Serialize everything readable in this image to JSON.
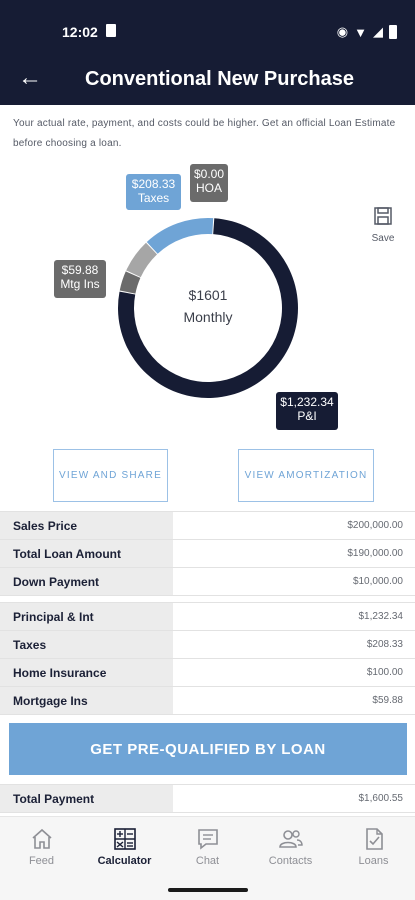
{
  "status": {
    "time": "12:02"
  },
  "header": {
    "title": "Conventional New Purchase",
    "back": "←"
  },
  "disclaimer": "Your actual rate, payment, and costs could be higher. Get an official Loan Estimate before choosing a loan.",
  "chart_data": {
    "type": "pie",
    "center": {
      "amount": "$1601",
      "label": "Monthly"
    },
    "slices": [
      {
        "name": "P&I",
        "value": 1232.34,
        "label": "$1,232.34",
        "color": "#161c34"
      },
      {
        "name": "Mtg Ins",
        "value": 59.88,
        "label": "$59.88",
        "color": "#6b6b6b"
      },
      {
        "name": "Home Ins",
        "value": 100.0,
        "color": "#a6a6a6"
      },
      {
        "name": "Taxes",
        "value": 208.33,
        "label": "$208.33",
        "color": "#6fa4d6"
      },
      {
        "name": "HOA",
        "value": 0.0,
        "label": "$0.00",
        "color": "#6b6b6b"
      }
    ]
  },
  "save": {
    "label": "Save"
  },
  "actions": {
    "share": "VIEW AND SHARE",
    "amortization": "VIEW AMORTIZATION"
  },
  "loan_table": [
    {
      "label": "Sales Price",
      "value": "$200,000.00"
    },
    {
      "label": "Total Loan Amount",
      "value": "$190,000.00"
    },
    {
      "label": "Down Payment",
      "value": "$10,000.00"
    }
  ],
  "payment_table": [
    {
      "label": "Principal & Int",
      "value": "$1,232.34"
    },
    {
      "label": "Taxes",
      "value": "$208.33"
    },
    {
      "label": "Home Insurance",
      "value": "$100.00"
    },
    {
      "label": "Mortgage Ins",
      "value": "$59.88"
    }
  ],
  "prequal": {
    "label": "GET PRE-QUALIFIED BY LOAN"
  },
  "total": {
    "label": "Total Payment",
    "value": "$1,600.55"
  },
  "tabs": [
    {
      "label": "Feed",
      "icon": "home-icon"
    },
    {
      "label": "Calculator",
      "icon": "calculator-icon"
    },
    {
      "label": "Chat",
      "icon": "chat-icon"
    },
    {
      "label": "Contacts",
      "icon": "contacts-icon"
    },
    {
      "label": "Loans",
      "icon": "document-check-icon"
    }
  ],
  "active_tab": "Calculator"
}
